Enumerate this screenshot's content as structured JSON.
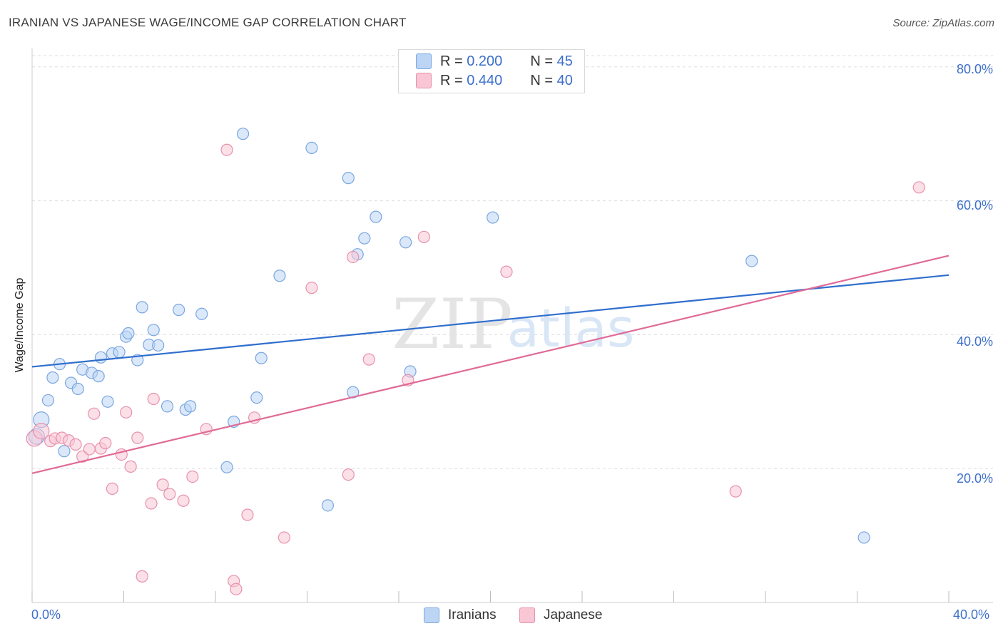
{
  "title": "IRANIAN VS JAPANESE WAGE/INCOME GAP CORRELATION CHART",
  "source": "Source: ZipAtlas.com",
  "watermark": {
    "zip": "ZIP",
    "atlas": "atlas"
  },
  "legend": {
    "r_label": "R =",
    "n_label": "N =",
    "rows": [
      {
        "r": "0.200",
        "n": "45"
      },
      {
        "r": "0.440",
        "n": "40"
      }
    ]
  },
  "bottom_legend": [
    "Iranians",
    "Japanese"
  ],
  "colors": {
    "iranians_fill": "#bcd5f5",
    "iranians_stroke": "#7aa6e0",
    "iranians_line": "#2f6ecc",
    "japanese_fill": "#f8c6d5",
    "japanese_stroke": "#e891ad",
    "japanese_line": "#e06a96",
    "grid": "#dddddd",
    "axis_text": "#3d6fcc"
  },
  "chart_data": {
    "type": "scatter",
    "title": "IRANIAN VS JAPANESE WAGE/INCOME GAP CORRELATION CHART",
    "xlabel": "",
    "ylabel": "Wage/Income Gap",
    "xlim": [
      0,
      40
    ],
    "ylim": [
      0,
      82
    ],
    "x_tick_labels": [
      "0.0%",
      "40.0%"
    ],
    "y_ticks": [
      20,
      40,
      60,
      80
    ],
    "y_tick_labels": [
      "20.0%",
      "40.0%",
      "60.0%",
      "80.0%"
    ],
    "grid": true,
    "legend_position": "top-center",
    "series": [
      {
        "name": "Iranians",
        "r": 0.2,
        "n": 45,
        "trend": [
          [
            0,
            35.2
          ],
          [
            40,
            48.9
          ]
        ],
        "points": [
          [
            0.2,
            24.8
          ],
          [
            0.4,
            27.3
          ],
          [
            0.7,
            30.2
          ],
          [
            0.9,
            33.6
          ],
          [
            1.2,
            35.6
          ],
          [
            1.4,
            22.6
          ],
          [
            1.7,
            32.8
          ],
          [
            2.0,
            31.9
          ],
          [
            2.2,
            34.8
          ],
          [
            2.6,
            34.3
          ],
          [
            2.9,
            33.8
          ],
          [
            3.0,
            36.6
          ],
          [
            3.3,
            30.0
          ],
          [
            3.5,
            37.2
          ],
          [
            3.8,
            37.4
          ],
          [
            4.1,
            39.7
          ],
          [
            4.2,
            40.2
          ],
          [
            4.6,
            36.2
          ],
          [
            4.8,
            44.1
          ],
          [
            5.1,
            38.5
          ],
          [
            5.3,
            40.7
          ],
          [
            5.5,
            38.4
          ],
          [
            5.9,
            29.3
          ],
          [
            6.4,
            43.7
          ],
          [
            6.7,
            28.8
          ],
          [
            6.9,
            29.3
          ],
          [
            7.4,
            43.1
          ],
          [
            8.5,
            20.2
          ],
          [
            8.8,
            27.0
          ],
          [
            9.2,
            70.0
          ],
          [
            9.8,
            30.6
          ],
          [
            10.0,
            36.5
          ],
          [
            10.8,
            48.8
          ],
          [
            12.2,
            67.9
          ],
          [
            12.9,
            14.5
          ],
          [
            13.8,
            63.4
          ],
          [
            14.0,
            31.4
          ],
          [
            14.2,
            52.0
          ],
          [
            14.5,
            54.4
          ],
          [
            15.0,
            57.6
          ],
          [
            16.3,
            53.8
          ],
          [
            16.5,
            34.5
          ],
          [
            20.1,
            57.5
          ],
          [
            31.4,
            51.0
          ],
          [
            36.3,
            9.7
          ]
        ]
      },
      {
        "name": "Japanese",
        "r": 0.44,
        "n": 40,
        "trend": [
          [
            0,
            19.3
          ],
          [
            40,
            51.8
          ]
        ],
        "points": [
          [
            0.1,
            24.5
          ],
          [
            0.4,
            25.6
          ],
          [
            0.8,
            24.1
          ],
          [
            1.0,
            24.5
          ],
          [
            1.3,
            24.6
          ],
          [
            1.6,
            24.2
          ],
          [
            1.9,
            23.6
          ],
          [
            2.2,
            21.8
          ],
          [
            2.5,
            22.9
          ],
          [
            2.7,
            28.2
          ],
          [
            3.0,
            23.0
          ],
          [
            3.2,
            23.8
          ],
          [
            3.5,
            17.0
          ],
          [
            3.9,
            22.1
          ],
          [
            4.1,
            28.4
          ],
          [
            4.3,
            20.3
          ],
          [
            4.6,
            24.6
          ],
          [
            5.2,
            14.8
          ],
          [
            5.3,
            30.4
          ],
          [
            5.7,
            17.6
          ],
          [
            6.0,
            16.2
          ],
          [
            6.6,
            15.2
          ],
          [
            7.0,
            18.8
          ],
          [
            7.6,
            25.9
          ],
          [
            8.5,
            67.6
          ],
          [
            8.8,
            3.2
          ],
          [
            8.9,
            2.0
          ],
          [
            9.4,
            13.1
          ],
          [
            9.7,
            27.6
          ],
          [
            11.0,
            9.7
          ],
          [
            12.2,
            47.0
          ],
          [
            13.8,
            19.1
          ],
          [
            14.0,
            51.6
          ],
          [
            14.7,
            36.3
          ],
          [
            16.4,
            33.2
          ],
          [
            17.1,
            54.6
          ],
          [
            20.7,
            49.4
          ],
          [
            30.7,
            16.6
          ],
          [
            38.7,
            62.0
          ],
          [
            4.8,
            3.9
          ]
        ]
      }
    ]
  }
}
